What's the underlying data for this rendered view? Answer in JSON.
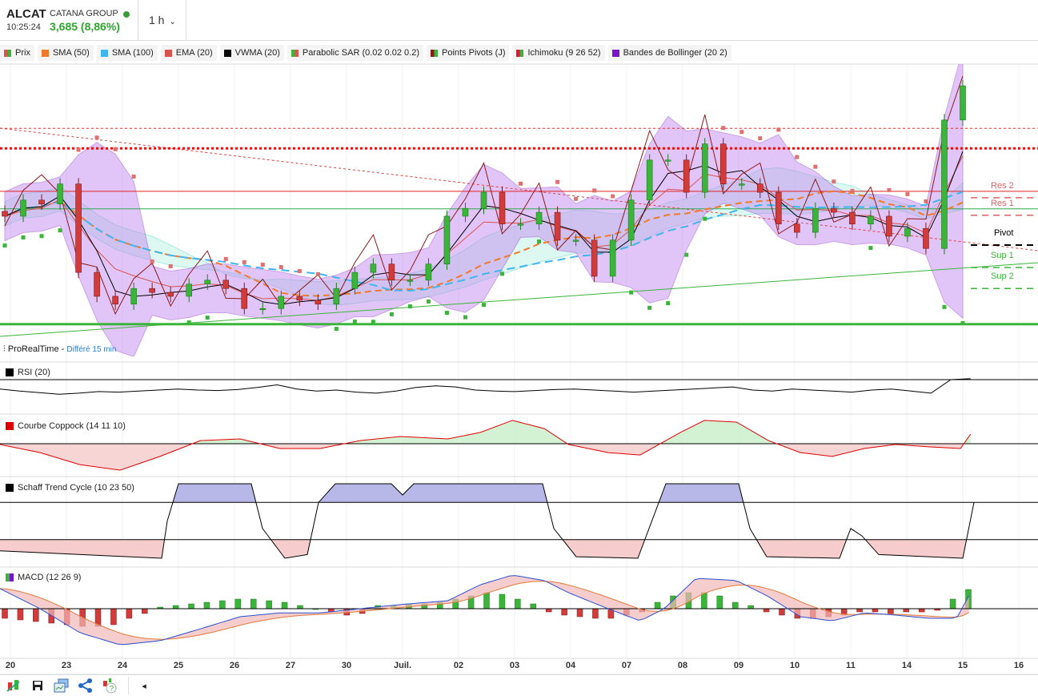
{
  "header": {
    "symbol": "ALCAT",
    "company": "CATANA GROUP",
    "time": "10:25:24",
    "last_price": "3,685 (8,86%)",
    "timeframe": "1 h",
    "colors": {
      "up": "#2ea52e"
    }
  },
  "legend": [
    {
      "label": "Prix",
      "color": "#d9534f",
      "color2": "#3ab53a"
    },
    {
      "label": "SMA (50)",
      "color": "#f07a2a"
    },
    {
      "label": "SMA (100)",
      "color": "#3fb6f0"
    },
    {
      "label": "EMA (20)",
      "color": "#d9534f"
    },
    {
      "label": "VWMA (20)",
      "color": "#000000"
    },
    {
      "label": "Parabolic SAR (0.02 0.02 0.2)",
      "color": "#3ab53a",
      "color2": "#d9534f"
    },
    {
      "label": "Points Pivots (J)",
      "color": "#8b1a1a",
      "color2": "#3ab53a"
    },
    {
      "label": "Ichimoku (9 26 52)",
      "color": "#e0143c",
      "color2": "#3ab53a"
    },
    {
      "label": "Bandes de Bollinger (20 2)",
      "color": "#7a14c8"
    }
  ],
  "source": {
    "name": "ProRealTime",
    "sep": " - ",
    "delay": "Différé 15 min"
  },
  "panes": {
    "rsi": "RSI (20)",
    "coppock": "Courbe Coppock (14 11 10)",
    "schaff": "Schaff Trend Cycle (10 23 50)",
    "macd": "MACD (12 26 9)"
  },
  "toolbar": {
    "icons": [
      "indicators-icon",
      "save-icon",
      "layouts-icon",
      "share-icon",
      "help-icon"
    ],
    "scroll_left": "◂"
  },
  "chart_data": [
    {
      "type": "candlestick",
      "title": "ALCAT 1 h",
      "x_unit": "trading session index (0 = 20 juin)",
      "x_labels": [
        "20",
        "23",
        "24",
        "25",
        "26",
        "27",
        "30",
        "Juil.",
        "02",
        "03",
        "04",
        "07",
        "08",
        "09",
        "10",
        "11",
        "14",
        "15",
        "16"
      ],
      "t_range": [
        -0.1,
        17.0
      ],
      "close": [
        3.418,
        3.451,
        3.443,
        3.484,
        3.303,
        3.254,
        3.238,
        3.27,
        3.262,
        3.254,
        3.279,
        3.287,
        3.27,
        3.229,
        3.229,
        3.254,
        3.246,
        3.238,
        3.27,
        3.303,
        3.32,
        3.287,
        3.287,
        3.32,
        3.418,
        3.434,
        3.467,
        3.402,
        3.402,
        3.426,
        3.369,
        3.369,
        3.295,
        3.369,
        3.451,
        3.533,
        3.533,
        3.467,
        3.566,
        3.484,
        3.484,
        3.467,
        3.402,
        3.385,
        3.434,
        3.426,
        3.402,
        3.418,
        3.377,
        3.393,
        3.352,
        3.615,
        3.685
      ],
      "pivots": [
        {
          "label": "Res 2",
          "price": 3.469,
          "color": "#e06060"
        },
        {
          "label": "Res 1",
          "price": 3.433,
          "color": "#e06060"
        },
        {
          "label": "Pivot",
          "price": 3.372,
          "color": "#000000"
        },
        {
          "label": "Sup 1",
          "price": 3.326,
          "color": "#3ab53a"
        },
        {
          "label": "Sup 2",
          "price": 3.283,
          "color": "#3ab53a"
        }
      ],
      "levels": [
        {
          "price": 3.598,
          "color": "#e03030",
          "style": "dotted-thin"
        },
        {
          "price": 3.557,
          "color": "#e01010",
          "style": "dotted-thick"
        },
        {
          "price": 3.197,
          "color": "#3ab53a",
          "style": "solid-thick"
        }
      ]
    },
    {
      "type": "line",
      "title": "RSI (20)",
      "ylim": [
        30,
        70
      ],
      "t_range": [
        -0.19,
        17.14
      ],
      "values": [
        52,
        48,
        45,
        42,
        44,
        47,
        46,
        48,
        50,
        52,
        50,
        49,
        51,
        55,
        60,
        52,
        48,
        50,
        46,
        44,
        48,
        55,
        58,
        56,
        50,
        48,
        47,
        49,
        51,
        52,
        50,
        48,
        46,
        48,
        50,
        52,
        54,
        56,
        50,
        48,
        52,
        50,
        48,
        46,
        50,
        52,
        48,
        44,
        70,
        72
      ]
    },
    {
      "type": "area",
      "title": "Courbe Coppock (14 11 10)",
      "baseline": 0,
      "points": [
        [
          -0.19,
          -0.03
        ],
        [
          0.53,
          -0.37
        ],
        [
          1.24,
          -0.87
        ],
        [
          1.96,
          -1.1
        ],
        [
          2.67,
          -0.53
        ],
        [
          3.39,
          0.13
        ],
        [
          4.1,
          0.2
        ],
        [
          4.81,
          -0.2
        ],
        [
          5.53,
          -0.2
        ],
        [
          6.24,
          0.13
        ],
        [
          6.96,
          0.3
        ],
        [
          7.81,
          0.2
        ],
        [
          8.39,
          0.47
        ],
        [
          8.96,
          0.97
        ],
        [
          9.53,
          0.63
        ],
        [
          9.96,
          -0.03
        ],
        [
          10.67,
          -0.37
        ],
        [
          11.24,
          -0.47
        ],
        [
          11.96,
          0.47
        ],
        [
          12.39,
          0.97
        ],
        [
          12.96,
          0.9
        ],
        [
          13.53,
          0.13
        ],
        [
          14.1,
          -0.37
        ],
        [
          14.67,
          -0.53
        ],
        [
          15.24,
          -0.2
        ],
        [
          15.81,
          -0.03
        ],
        [
          16.39,
          -0.13
        ],
        [
          16.96,
          -0.2
        ],
        [
          17.14,
          0.4
        ]
      ]
    },
    {
      "type": "line",
      "title": "Schaff Trend Cycle (10 23 50)",
      "ylim": [
        0,
        100
      ],
      "bands": [
        25,
        75
      ],
      "points": [
        [
          -0.2,
          10
        ],
        [
          2.7,
          0
        ],
        [
          2.8,
          50
        ],
        [
          3.0,
          100
        ],
        [
          4.3,
          100
        ],
        [
          4.5,
          40
        ],
        [
          4.9,
          0
        ],
        [
          5.3,
          5
        ],
        [
          5.5,
          75
        ],
        [
          5.8,
          100
        ],
        [
          6.8,
          100
        ],
        [
          7.0,
          85
        ],
        [
          7.2,
          100
        ],
        [
          9.5,
          100
        ],
        [
          9.7,
          40
        ],
        [
          10.1,
          2
        ],
        [
          11.2,
          0
        ],
        [
          11.5,
          60
        ],
        [
          11.7,
          100
        ],
        [
          13.0,
          100
        ],
        [
          13.2,
          40
        ],
        [
          13.5,
          2
        ],
        [
          14.8,
          0
        ],
        [
          15.0,
          40
        ],
        [
          15.2,
          30
        ],
        [
          15.5,
          5
        ],
        [
          17.0,
          0
        ],
        [
          17.2,
          75
        ]
      ]
    },
    {
      "type": "macd",
      "title": "MACD (12 26 9)",
      "macd": [
        [
          -0.19,
          0.63
        ],
        [
          0.53,
          0
        ],
        [
          1.24,
          -0.75
        ],
        [
          1.96,
          -1.13
        ],
        [
          2.67,
          -1.0
        ],
        [
          3.39,
          -0.63
        ],
        [
          4.1,
          -0.25
        ],
        [
          4.81,
          -0.13
        ],
        [
          5.53,
          -0.13
        ],
        [
          6.24,
          0
        ],
        [
          6.96,
          0.13
        ],
        [
          7.81,
          0.25
        ],
        [
          8.39,
          0.75
        ],
        [
          8.96,
          1.05
        ],
        [
          9.53,
          0.88
        ],
        [
          9.96,
          0.5
        ],
        [
          10.67,
          0
        ],
        [
          11.24,
          -0.38
        ],
        [
          11.67,
          0
        ],
        [
          12.24,
          0.95
        ],
        [
          12.96,
          0.88
        ],
        [
          13.53,
          0.38
        ],
        [
          14.1,
          -0.25
        ],
        [
          14.67,
          -0.38
        ],
        [
          15.24,
          -0.13
        ],
        [
          15.81,
          -0.2
        ],
        [
          16.39,
          -0.3
        ],
        [
          16.89,
          -0.3
        ],
        [
          17.14,
          0.5
        ]
      ],
      "histogram_t_range": [
        -0.1,
        17.1
      ],
      "histogram": [
        -0.3,
        -0.35,
        -0.4,
        -0.45,
        -0.5,
        -0.55,
        -0.55,
        -0.5,
        -0.3,
        -0.15,
        0.05,
        0.1,
        0.15,
        0.2,
        0.25,
        0.3,
        0.3,
        0.25,
        0.2,
        0.1,
        0,
        -0.1,
        -0.2,
        -0.15,
        0.1,
        0.1,
        0.15,
        0.15,
        0.2,
        0.3,
        0.4,
        0.5,
        0.45,
        0.3,
        0.15,
        -0.1,
        -0.2,
        -0.25,
        -0.3,
        -0.3,
        -0.2,
        -0.1,
        0.2,
        0.4,
        0.5,
        0.5,
        0.4,
        0.2,
        0.1,
        -0.1,
        -0.2,
        -0.3,
        -0.3,
        -0.25,
        -0.2,
        -0.1,
        -0.1,
        -0.15,
        -0.1,
        -0.1,
        -0.05,
        0.3,
        0.6
      ]
    }
  ]
}
